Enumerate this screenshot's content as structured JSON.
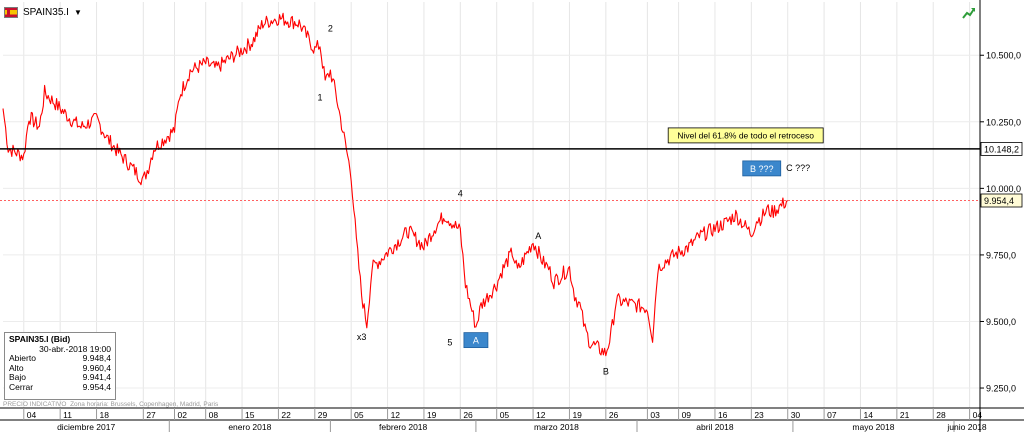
{
  "symbol": {
    "name": "SPAIN35.I"
  },
  "info_box": {
    "title": "SPAIN35.I (Bid)",
    "date": "30-abr.-2018 19:00",
    "rows": [
      {
        "label": "Abierto",
        "value": "9.948,4"
      },
      {
        "label": "Alto",
        "value": "9.960,4"
      },
      {
        "label": "Bajo",
        "value": "9.941,4"
      },
      {
        "label": "Cerrar",
        "value": "9.954,4"
      }
    ]
  },
  "footer_note": {
    "prefix": "PRECIO INDICATIVO",
    "timezone": "Zona horaria: Brussels, Copenhagen, Madrid, Paris"
  },
  "colors": {
    "series": "#ff0000",
    "level_line": "#000000",
    "last_line": "#ff6060",
    "note_bg": "#ffff99",
    "wave_box": "#3b87cc"
  },
  "chart_data": {
    "type": "line",
    "y_axis": {
      "side": "right",
      "ticks": [
        9250,
        9500,
        9750,
        10000,
        10250,
        10500
      ],
      "tick_labels": [
        "9.250,0",
        "9.500,0",
        "9.750,0",
        "10.000,0",
        "10.250,0",
        "10.500,0"
      ],
      "range": [
        9175,
        10700
      ]
    },
    "x_axis": {
      "start": "2017-11-30",
      "end": "2018-06-06",
      "day_ticks": [
        {
          "date": "2017-12-04",
          "label": "04"
        },
        {
          "date": "2017-12-11",
          "label": "11"
        },
        {
          "date": "2017-12-18",
          "label": "18"
        },
        {
          "date": "2017-12-27",
          "label": "27"
        },
        {
          "date": "2018-01-02",
          "label": "02"
        },
        {
          "date": "2018-01-08",
          "label": "08"
        },
        {
          "date": "2018-01-15",
          "label": "15"
        },
        {
          "date": "2018-01-22",
          "label": "22"
        },
        {
          "date": "2018-01-29",
          "label": "29"
        },
        {
          "date": "2018-02-05",
          "label": "05"
        },
        {
          "date": "2018-02-12",
          "label": "12"
        },
        {
          "date": "2018-02-19",
          "label": "19"
        },
        {
          "date": "2018-02-26",
          "label": "26"
        },
        {
          "date": "2018-03-05",
          "label": "05"
        },
        {
          "date": "2018-03-12",
          "label": "12"
        },
        {
          "date": "2018-03-19",
          "label": "19"
        },
        {
          "date": "2018-03-26",
          "label": "26"
        },
        {
          "date": "2018-04-03",
          "label": "03"
        },
        {
          "date": "2018-04-09",
          "label": "09"
        },
        {
          "date": "2018-04-16",
          "label": "16"
        },
        {
          "date": "2018-04-23",
          "label": "23"
        },
        {
          "date": "2018-04-30",
          "label": "30"
        },
        {
          "date": "2018-05-07",
          "label": "07"
        },
        {
          "date": "2018-05-14",
          "label": "14"
        },
        {
          "date": "2018-05-21",
          "label": "21"
        },
        {
          "date": "2018-05-28",
          "label": "28"
        },
        {
          "date": "2018-06-04",
          "label": "04"
        }
      ],
      "month_ticks": [
        {
          "start": "2017-11-30",
          "end": "2018-01-01",
          "label": "diciembre 2017"
        },
        {
          "start": "2018-01-01",
          "end": "2018-02-01",
          "label": "enero 2018"
        },
        {
          "start": "2018-02-01",
          "end": "2018-03-01",
          "label": "febrero 2018"
        },
        {
          "start": "2018-03-01",
          "end": "2018-04-01",
          "label": "marzo 2018"
        },
        {
          "start": "2018-04-01",
          "end": "2018-05-01",
          "label": "abril 2018"
        },
        {
          "start": "2018-05-01",
          "end": "2018-06-01",
          "label": "mayo 2018"
        },
        {
          "start": "2018-06-01",
          "end": "2018-06-06",
          "label": "junio 2018"
        }
      ]
    },
    "series": [
      {
        "x": [
          "2017-11-30",
          "2017-12-01",
          "2017-12-04",
          "2017-12-05",
          "2017-12-07",
          "2017-12-08",
          "2017-12-11",
          "2017-12-13",
          "2017-12-15",
          "2017-12-18",
          "2017-12-20",
          "2017-12-22",
          "2017-12-27",
          "2017-12-28",
          "2017-12-29",
          "2018-01-02",
          "2018-01-03",
          "2018-01-05",
          "2018-01-08",
          "2018-01-10",
          "2018-01-12",
          "2018-01-15",
          "2018-01-17",
          "2018-01-19",
          "2018-01-22",
          "2018-01-24",
          "2018-01-26",
          "2018-01-29",
          "2018-01-30",
          "2018-01-31",
          "2018-02-01",
          "2018-02-02",
          "2018-02-05",
          "2018-02-06",
          "2018-02-07",
          "2018-02-08",
          "2018-02-09",
          "2018-02-12",
          "2018-02-14",
          "2018-02-16",
          "2018-02-19",
          "2018-02-21",
          "2018-02-23",
          "2018-02-26",
          "2018-02-27",
          "2018-02-28",
          "2018-03-01",
          "2018-03-02",
          "2018-03-05",
          "2018-03-06",
          "2018-03-08",
          "2018-03-09",
          "2018-03-12",
          "2018-03-14",
          "2018-03-15",
          "2018-03-16",
          "2018-03-19",
          "2018-03-20",
          "2018-03-21",
          "2018-03-22",
          "2018-03-23",
          "2018-03-26",
          "2018-03-27",
          "2018-03-28",
          "2018-04-03",
          "2018-04-04",
          "2018-04-05",
          "2018-04-06",
          "2018-04-09",
          "2018-04-11",
          "2018-04-13",
          "2018-04-16",
          "2018-04-18",
          "2018-04-20",
          "2018-04-23",
          "2018-04-24",
          "2018-04-25",
          "2018-04-26",
          "2018-04-27",
          "2018-04-30"
        ],
        "y": [
          10300,
          10150,
          10120,
          10270,
          10230,
          10360,
          10300,
          10260,
          10230,
          10260,
          10190,
          10140,
          10030,
          10080,
          10150,
          10220,
          10350,
          10440,
          10470,
          10450,
          10480,
          10520,
          10550,
          10620,
          10640,
          10630,
          10620,
          10520,
          10540,
          10400,
          10440,
          10360,
          10050,
          9800,
          9600,
          9490,
          9700,
          9760,
          9800,
          9840,
          9780,
          9850,
          9900,
          9840,
          9640,
          9560,
          9480,
          9560,
          9640,
          9690,
          9760,
          9690,
          9800,
          9720,
          9700,
          9650,
          9700,
          9600,
          9560,
          9470,
          9420,
          9380,
          9450,
          9580,
          9550,
          9440,
          9700,
          9720,
          9760,
          9780,
          9820,
          9850,
          9870,
          9900,
          9830,
          9880,
          9890,
          9920,
          9910,
          9954.4
        ]
      }
    ],
    "horizontal_lines": [
      {
        "value": 10148.2,
        "label": "10.148,2"
      },
      {
        "value": 9954.4,
        "label": "9.954,4"
      }
    ],
    "annotations": {
      "note": "Nivel del 61.8% de todo el retroceso",
      "labels": [
        {
          "text": "2",
          "x": "2018-02-01",
          "y": 10590
        },
        {
          "text": "1",
          "x": "2018-01-30",
          "y": 10330
        },
        {
          "text": "x3",
          "x": "2018-02-07",
          "y": 9430
        },
        {
          "text": "4",
          "x": "2018-02-26",
          "y": 9970
        },
        {
          "text": "5",
          "x": "2018-02-24",
          "y": 9410
        },
        {
          "text": "A",
          "x": "2018-03-13",
          "y": 9810
        },
        {
          "text": "B",
          "x": "2018-03-26",
          "y": 9300
        },
        {
          "text": "C ???",
          "x": "2018-05-02",
          "y": 10065
        }
      ],
      "boxes": [
        {
          "text": "A",
          "x": "2018-03-01",
          "y": 9430
        },
        {
          "text": "B ???",
          "x": "2018-04-25",
          "y": 10075
        }
      ]
    }
  }
}
